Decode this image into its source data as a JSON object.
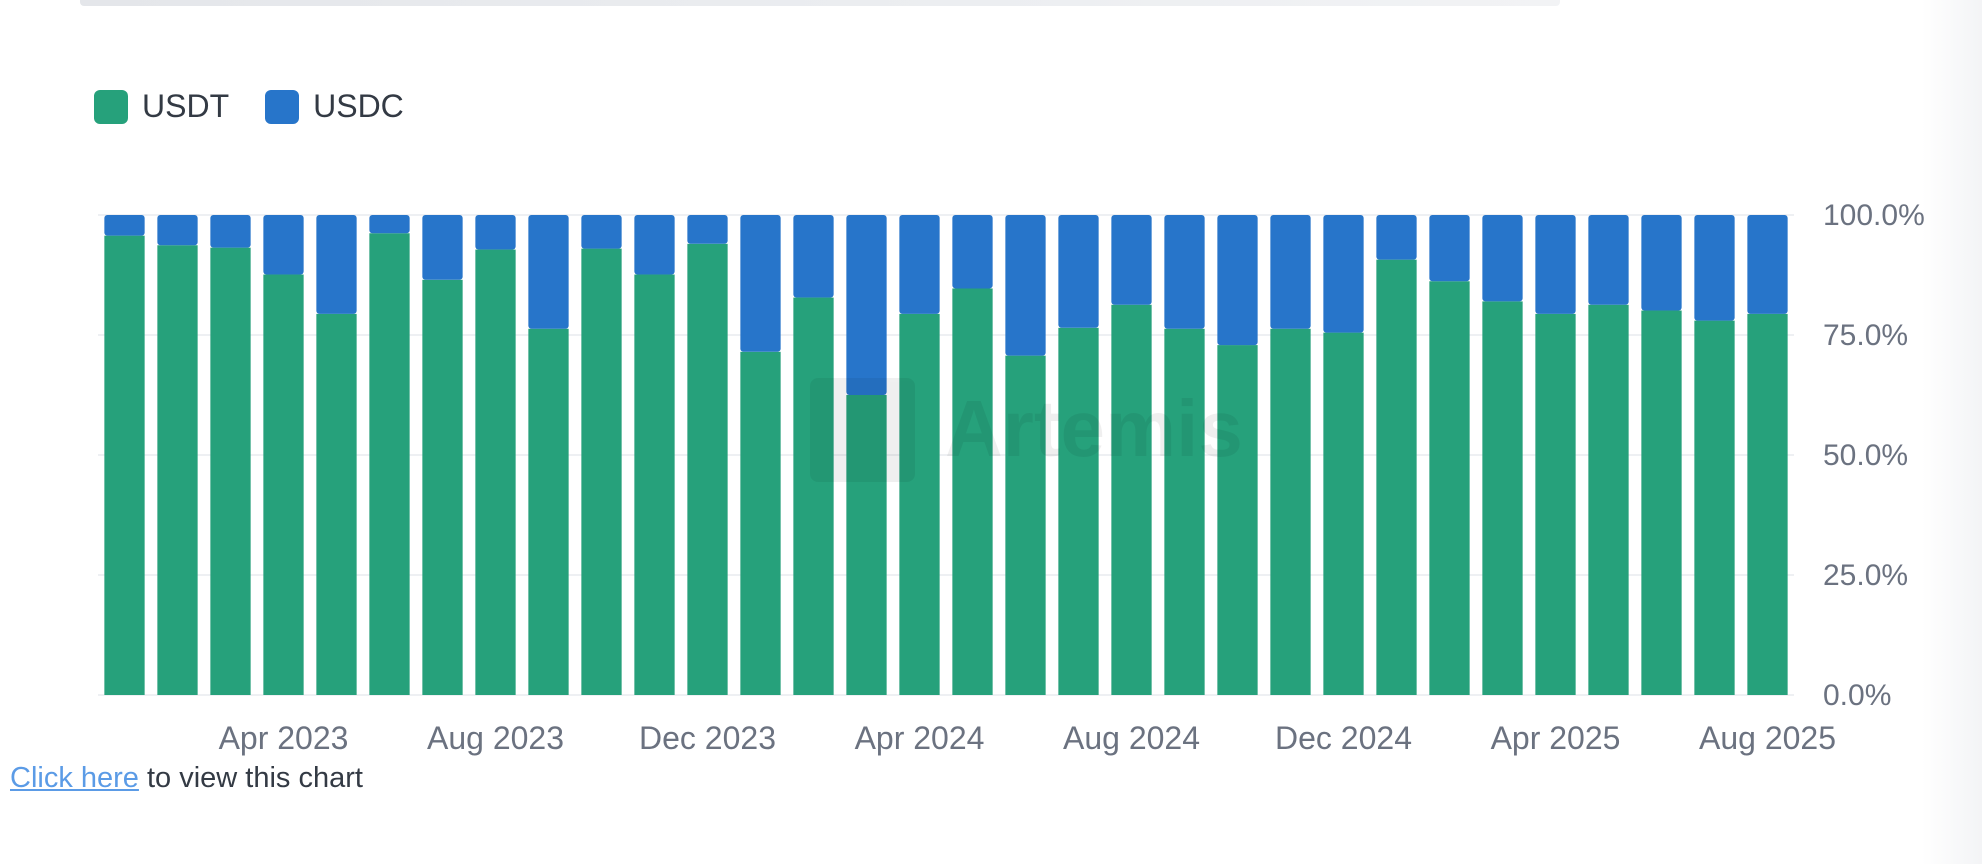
{
  "chart_data": {
    "type": "bar",
    "stacked": true,
    "normalized": true,
    "legend_position": "top-left",
    "grid": true,
    "watermark_text": "Artemis",
    "ylim": [
      0,
      100
    ],
    "y_ticks": [
      "0.0%",
      "25.0%",
      "50.0%",
      "75.0%",
      "100.0%"
    ],
    "y_tick_values": [
      0,
      25,
      50,
      75,
      100
    ],
    "x_tick_labels": [
      "Apr 2023",
      "Aug 2023",
      "Dec 2023",
      "Apr 2024",
      "Aug 2024",
      "Dec 2024",
      "Apr 2025",
      "Aug 2025"
    ],
    "x_tick_bar_index": [
      3,
      7,
      11,
      15,
      19,
      23,
      27,
      31
    ],
    "series": [
      {
        "name": "USDT",
        "color": "#26a17b",
        "values": [
          95.7,
          93.7,
          93.2,
          87.6,
          79.4,
          96.2,
          86.5,
          92.8,
          76.3,
          93.0,
          87.6,
          94.0,
          71.5,
          82.8,
          62.5,
          79.4,
          84.7,
          70.7,
          76.5,
          81.3,
          76.3,
          72.9,
          76.3,
          75.5,
          90.7,
          86.2,
          82.0,
          79.4,
          81.3,
          80.1,
          78.0,
          79.4
        ]
      },
      {
        "name": "USDC",
        "color": "#2775ca",
        "values": [
          4.3,
          6.3,
          6.8,
          12.4,
          20.6,
          3.8,
          13.5,
          7.2,
          23.7,
          7.0,
          12.4,
          6.0,
          28.5,
          17.2,
          37.5,
          20.6,
          15.3,
          29.3,
          23.5,
          18.7,
          23.7,
          27.1,
          23.7,
          24.5,
          9.3,
          13.8,
          18.0,
          20.6,
          18.7,
          19.9,
          22.0,
          20.6
        ]
      }
    ]
  },
  "footer": {
    "link_text": "Click here",
    "rest_text": " to view this chart"
  }
}
